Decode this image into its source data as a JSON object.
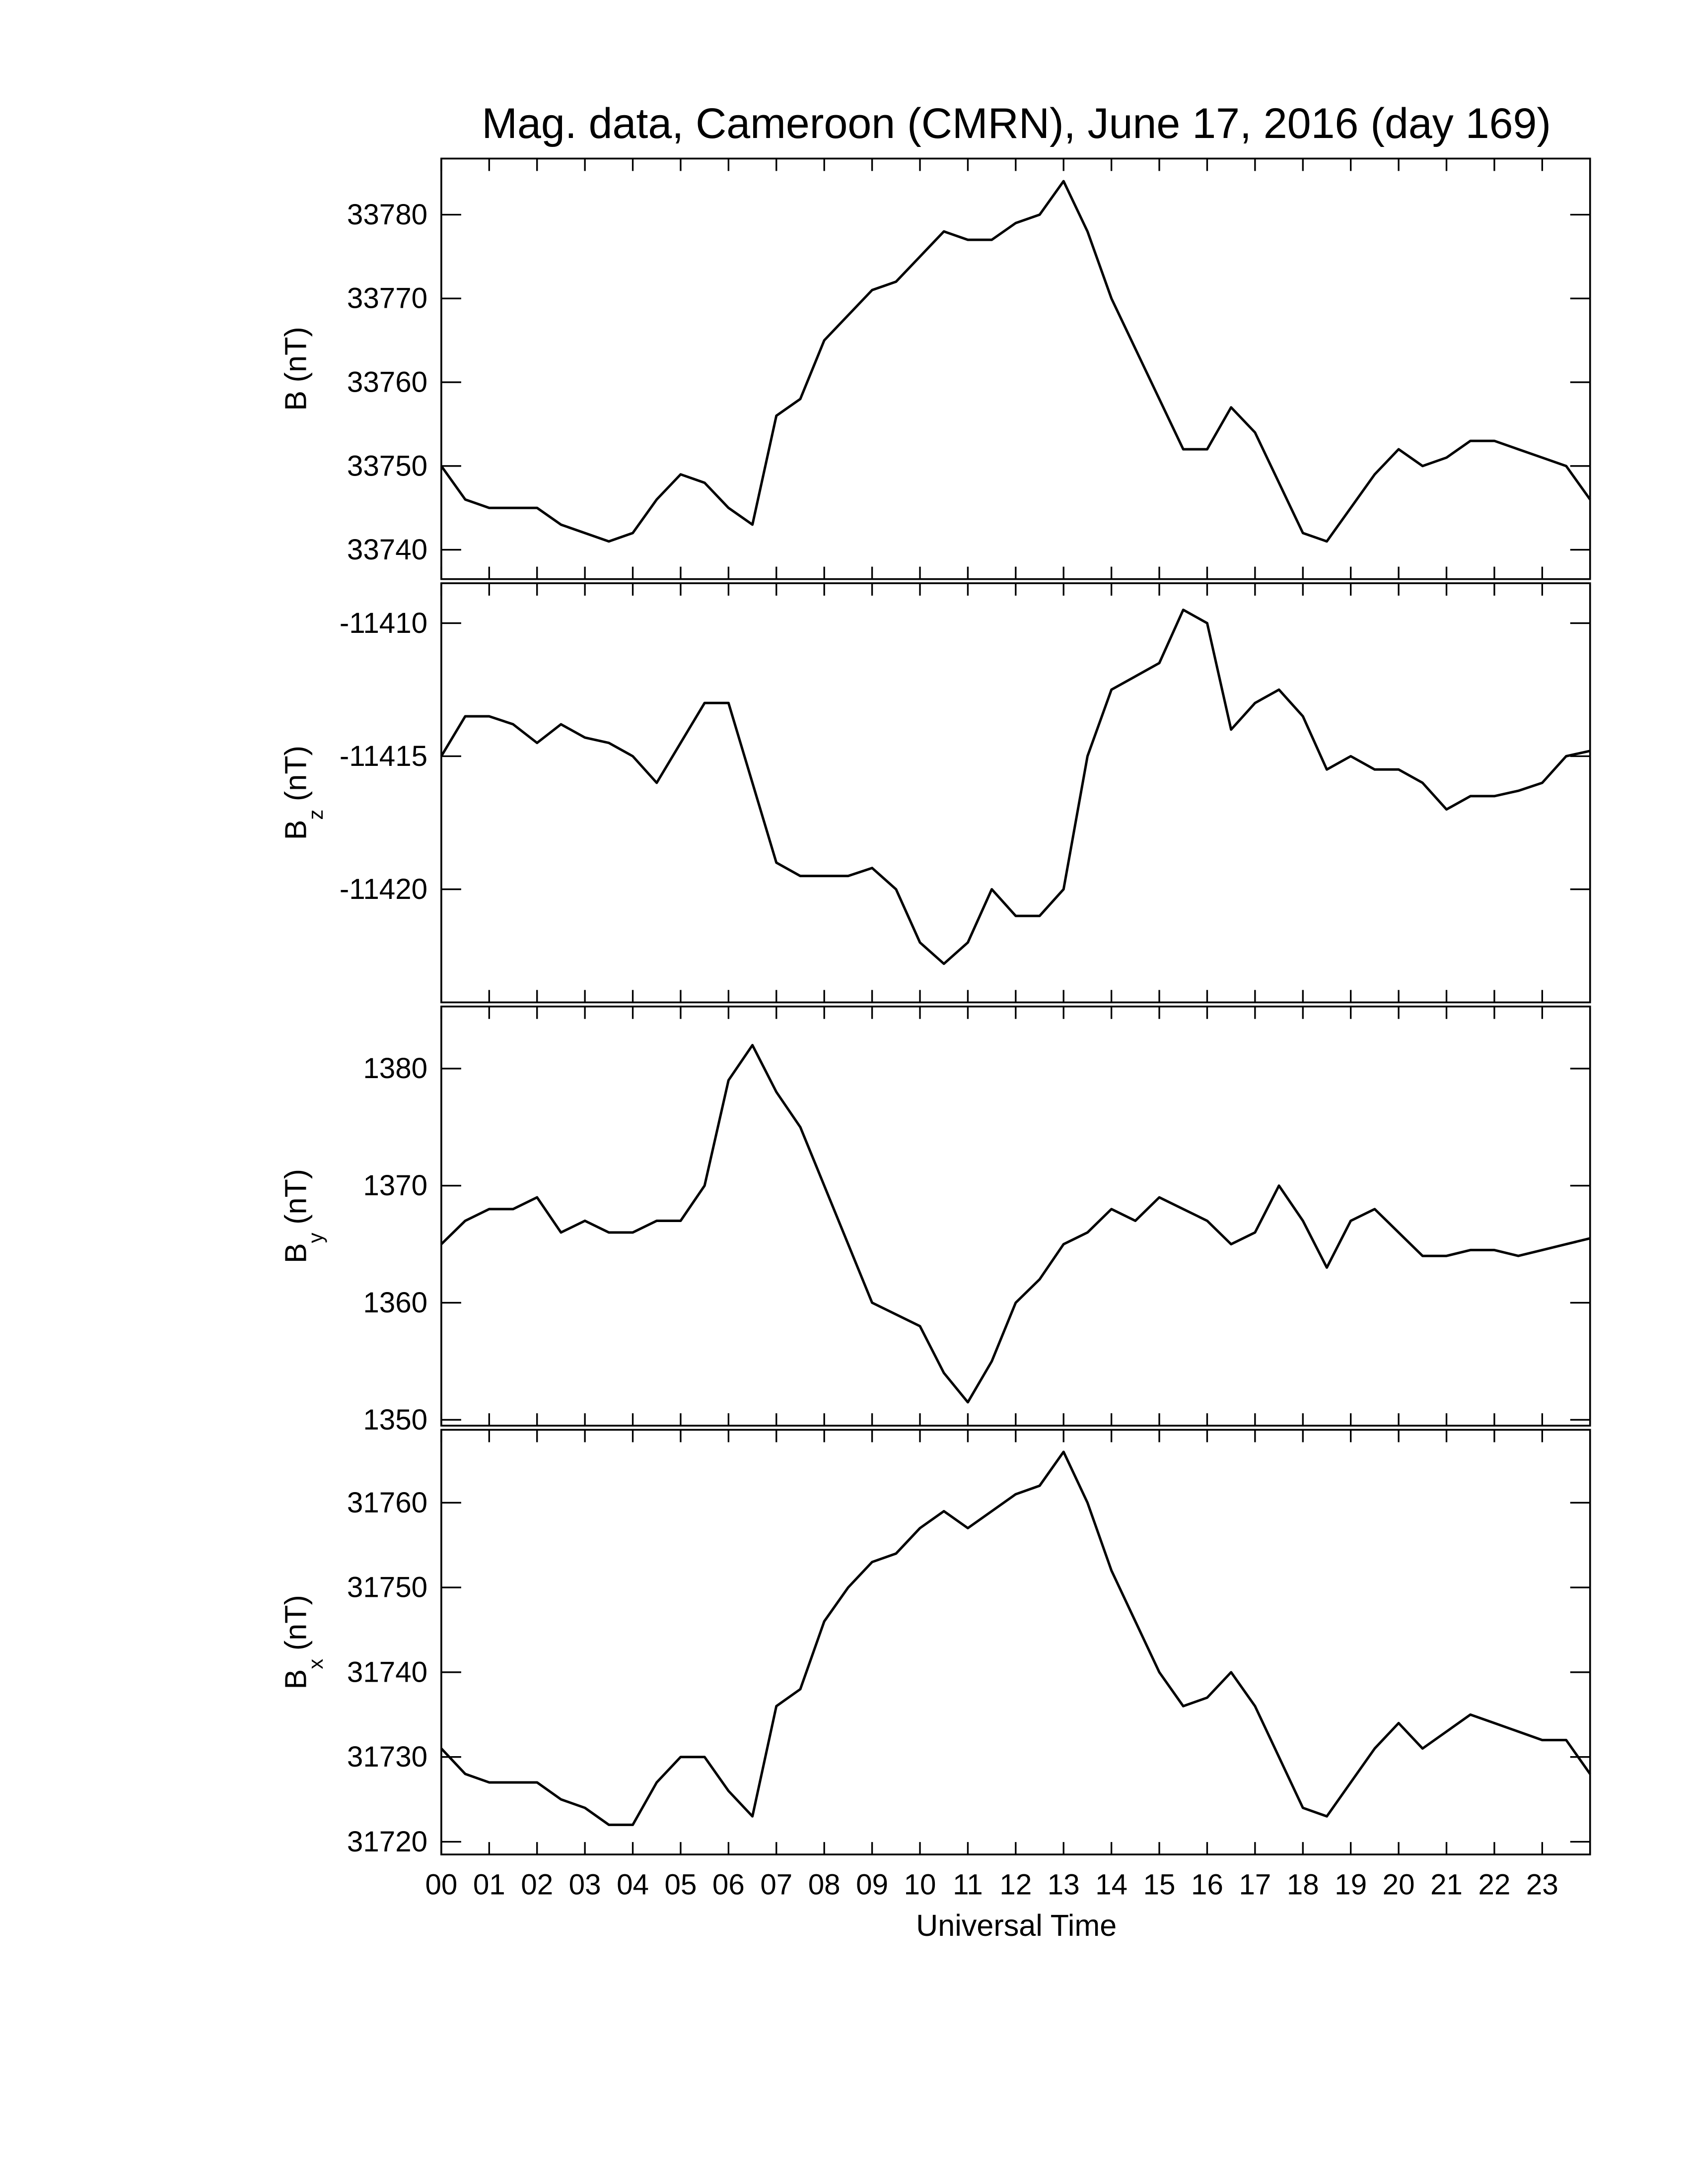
{
  "title": "Mag. data, Cameroon (CMRN), June 17, 2016 (day 169)",
  "x_axis": {
    "label": "Universal Time",
    "xlim": [
      0,
      24
    ],
    "xticks": [
      {
        "value": 0,
        "label": "00"
      },
      {
        "value": 1,
        "label": "01"
      },
      {
        "value": 2,
        "label": "02"
      },
      {
        "value": 3,
        "label": "03"
      },
      {
        "value": 4,
        "label": "04"
      },
      {
        "value": 5,
        "label": "05"
      },
      {
        "value": 6,
        "label": "06"
      },
      {
        "value": 7,
        "label": "07"
      },
      {
        "value": 8,
        "label": "08"
      },
      {
        "value": 9,
        "label": "09"
      },
      {
        "value": 10,
        "label": "10"
      },
      {
        "value": 11,
        "label": "11"
      },
      {
        "value": 12,
        "label": "12"
      },
      {
        "value": 13,
        "label": "13"
      },
      {
        "value": 14,
        "label": "14"
      },
      {
        "value": 15,
        "label": "15"
      },
      {
        "value": 16,
        "label": "16"
      },
      {
        "value": 17,
        "label": "17"
      },
      {
        "value": 18,
        "label": "18"
      },
      {
        "value": 19,
        "label": "19"
      },
      {
        "value": 20,
        "label": "20"
      },
      {
        "value": 21,
        "label": "21"
      },
      {
        "value": 22,
        "label": "22"
      },
      {
        "value": 23,
        "label": "23"
      }
    ],
    "x": [
      0,
      0.5,
      1,
      1.5,
      2,
      2.5,
      3,
      3.5,
      4,
      4.5,
      5,
      5.5,
      6,
      6.5,
      7,
      7.5,
      8,
      8.5,
      9,
      9.5,
      10,
      10.5,
      11,
      11.5,
      12,
      12.5,
      13,
      13.5,
      14,
      14.5,
      15,
      15.5,
      16,
      16.5,
      17,
      17.5,
      18,
      18.5,
      19,
      19.5,
      20,
      20.5,
      21,
      21.5,
      22,
      22.5,
      23,
      23.5,
      24
    ]
  },
  "chart_data": [
    {
      "type": "line",
      "y_label": "B",
      "y_label_unit": "(nT)",
      "color": "#000000",
      "ylim": [
        33736.5,
        33786.7
      ],
      "yticks": [
        33740,
        33750,
        33760,
        33770,
        33780
      ],
      "values": [
        33750,
        33746,
        33745,
        33745,
        33745,
        33743,
        33742,
        33741,
        33742,
        33746,
        33749,
        33748,
        33745,
        33743,
        33756,
        33758,
        33765,
        33768,
        33771,
        33772,
        33775,
        33778,
        33777,
        33777,
        33779,
        33780,
        33784,
        33778,
        33770,
        33764,
        33758,
        33752,
        33752,
        33757,
        33754,
        33748,
        33742,
        33741,
        33745,
        33749,
        33752,
        33750,
        33751,
        33753,
        33753,
        33752,
        33751,
        33750,
        33746
      ]
    },
    {
      "type": "line",
      "y_label": "B",
      "y_label_sub": "z",
      "y_label_unit": "(nT)",
      "color": "#000000",
      "ylim": [
        -11424.25,
        -11408.5
      ],
      "yticks": [
        -11420,
        -11415,
        -11410
      ],
      "values": [
        -11415,
        -11413.5,
        -11413.5,
        -11413.8,
        -11414.5,
        -11413.8,
        -11414.3,
        -11414.5,
        -11415,
        -11416,
        -11414.5,
        -11413,
        -11413,
        -11416,
        -11419,
        -11419.5,
        -11419.5,
        -11419.5,
        -11419.2,
        -11420,
        -11422,
        -11422.8,
        -11422,
        -11420,
        -11421,
        -11421,
        -11420,
        -11415,
        -11412.5,
        -11412,
        -11411.5,
        -11409.5,
        -11410,
        -11414,
        -11413,
        -11412.5,
        -11413.5,
        -11415.5,
        -11415,
        -11415.5,
        -11415.5,
        -11416,
        -11417,
        -11416.5,
        -11416.5,
        -11416.3,
        -11416,
        -11415,
        -11414.8
      ]
    },
    {
      "type": "line",
      "y_label": "B",
      "y_label_sub": "y",
      "y_label_unit": "(nT)",
      "color": "#000000",
      "ylim": [
        1349.5,
        1385.3
      ],
      "yticks": [
        1350,
        1360,
        1370,
        1380
      ],
      "values": [
        1365,
        1367,
        1368,
        1368,
        1369,
        1366,
        1367,
        1366,
        1366,
        1367,
        1367,
        1370,
        1379,
        1382,
        1378,
        1375,
        1370,
        1365,
        1360,
        1359,
        1358,
        1354,
        1351.5,
        1355,
        1360,
        1362,
        1365,
        1366,
        1368,
        1367,
        1369,
        1368,
        1367,
        1365,
        1366,
        1370,
        1367,
        1363,
        1367,
        1368,
        1366,
        1364,
        1364,
        1364.5,
        1364.5,
        1364,
        1364.5,
        1365,
        1365.5
      ]
    },
    {
      "type": "line",
      "y_label": "B",
      "y_label_sub": "x",
      "y_label_unit": "(nT)",
      "color": "#000000",
      "ylim": [
        31718.5,
        31768.6
      ],
      "yticks": [
        31720,
        31730,
        31740,
        31750,
        31760
      ],
      "values": [
        31731,
        31728,
        31727,
        31727,
        31727,
        31725,
        31724,
        31722,
        31722,
        31727,
        31730,
        31730,
        31726,
        31723,
        31736,
        31738,
        31746,
        31750,
        31753,
        31754,
        31757,
        31759,
        31757,
        31759,
        31761,
        31762,
        31766,
        31760,
        31752,
        31746,
        31740,
        31736,
        31737,
        31740,
        31736,
        31730,
        31724,
        31723,
        31727,
        31731,
        31734,
        31731,
        31733,
        31735,
        31734,
        31733,
        31732,
        31732,
        31728
      ]
    }
  ]
}
